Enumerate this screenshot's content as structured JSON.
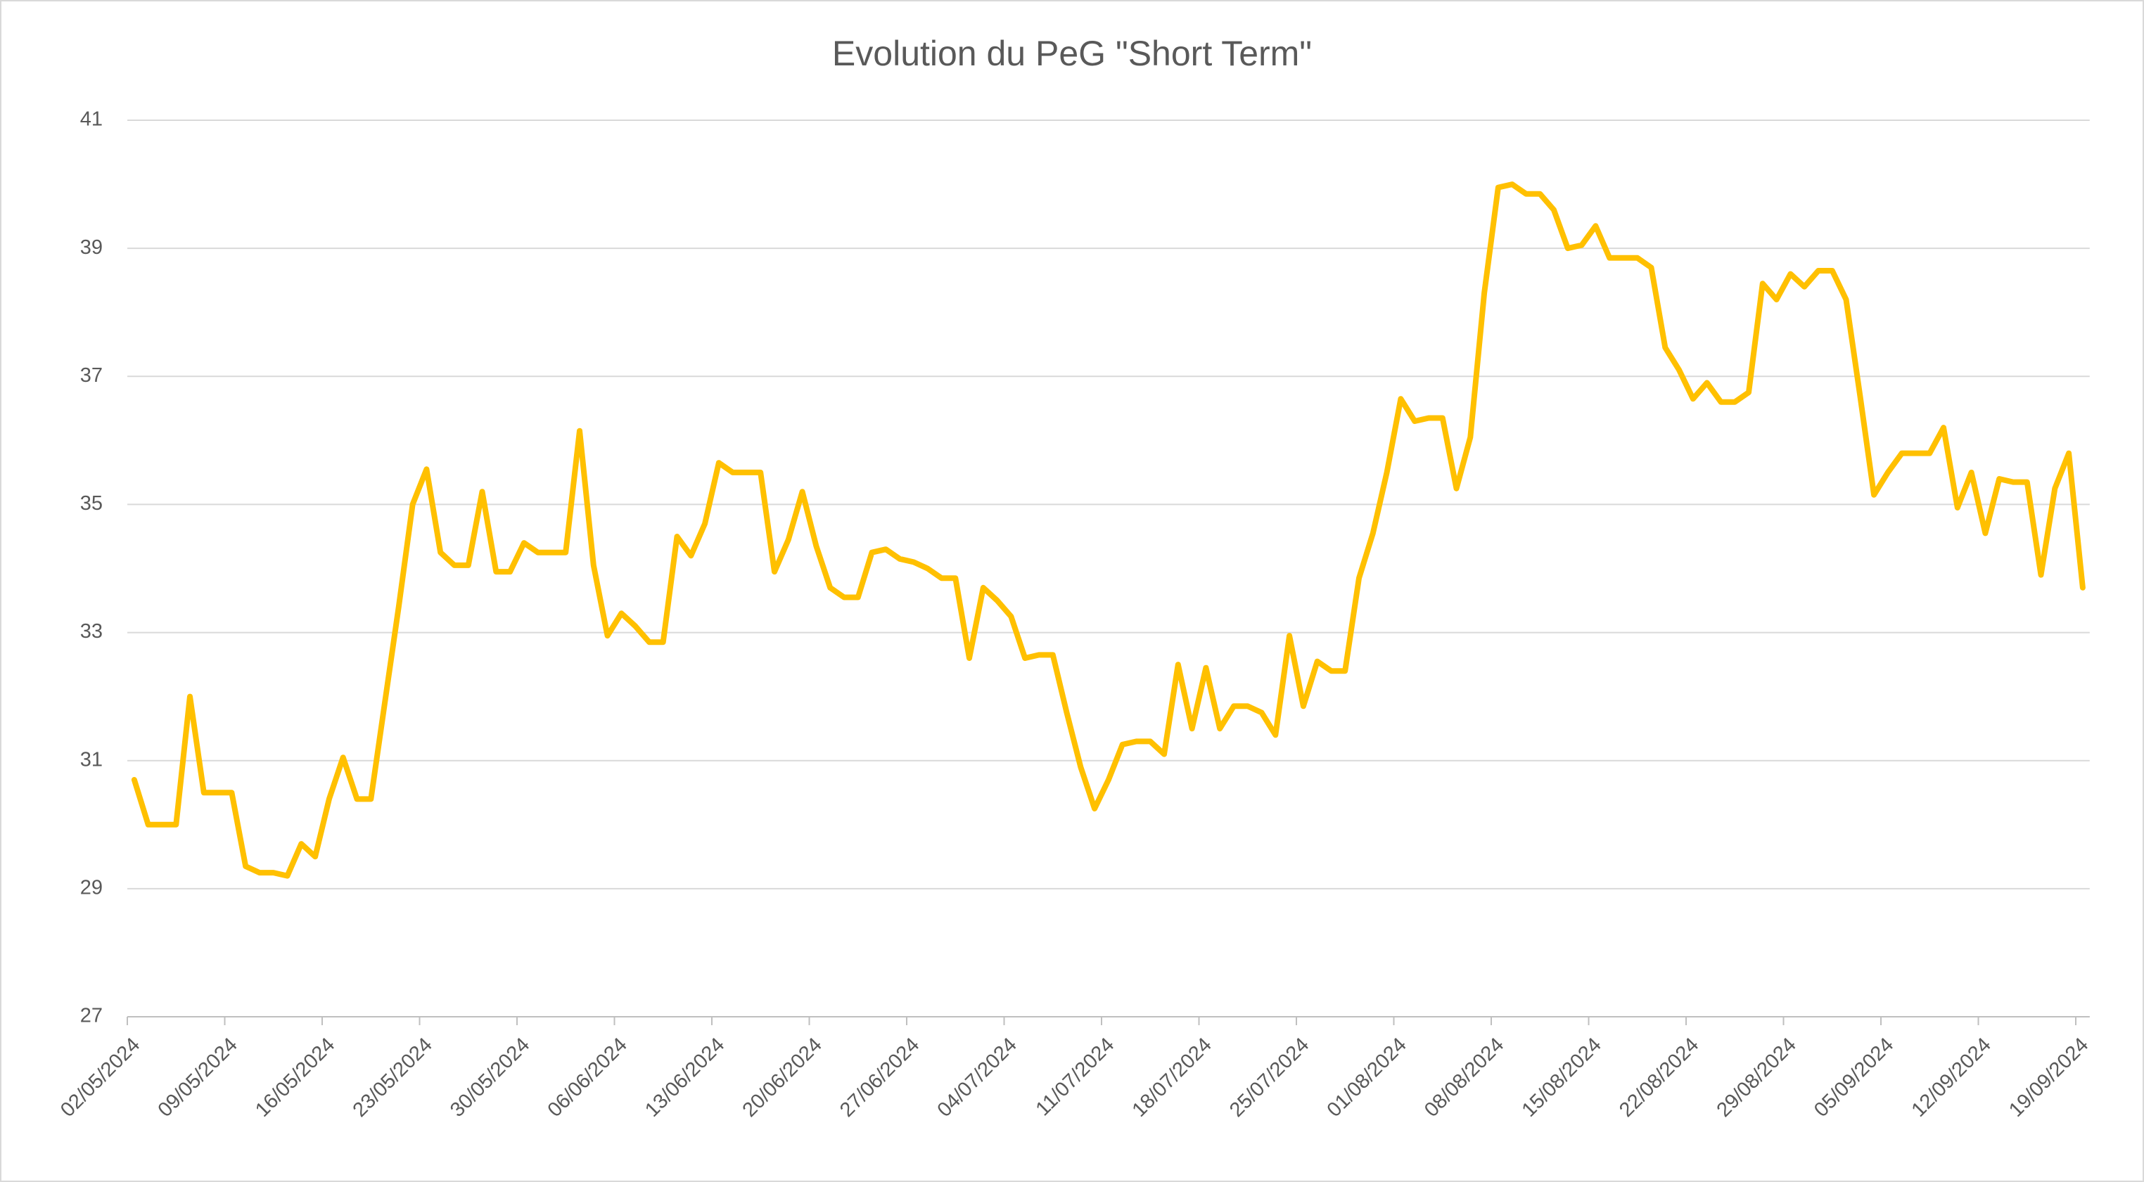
{
  "chart_data": {
    "type": "line",
    "title": "Evolution du PeG \"Short Term\"",
    "color": "#FFC000",
    "grid": true,
    "x": [
      "02/05/2024",
      "03/05/2024",
      "04/05/2024",
      "05/05/2024",
      "06/05/2024",
      "07/05/2024",
      "08/05/2024",
      "09/05/2024",
      "10/05/2024",
      "11/05/2024",
      "12/05/2024",
      "13/05/2024",
      "14/05/2024",
      "15/05/2024",
      "16/05/2024",
      "17/05/2024",
      "18/05/2024",
      "19/05/2024",
      "20/05/2024",
      "21/05/2024",
      "22/05/2024",
      "23/05/2024",
      "24/05/2024",
      "25/05/2024",
      "26/05/2024",
      "27/05/2024",
      "28/05/2024",
      "29/05/2024",
      "30/05/2024",
      "31/05/2024",
      "01/06/2024",
      "02/06/2024",
      "03/06/2024",
      "04/06/2024",
      "05/06/2024",
      "06/06/2024",
      "07/06/2024",
      "08/06/2024",
      "09/06/2024",
      "10/06/2024",
      "11/06/2024",
      "12/06/2024",
      "13/06/2024",
      "14/06/2024",
      "15/06/2024",
      "16/06/2024",
      "17/06/2024",
      "18/06/2024",
      "19/06/2024",
      "20/06/2024",
      "21/06/2024",
      "22/06/2024",
      "23/06/2024",
      "24/06/2024",
      "25/06/2024",
      "26/06/2024",
      "27/06/2024",
      "28/06/2024",
      "29/06/2024",
      "30/06/2024",
      "01/07/2024",
      "02/07/2024",
      "03/07/2024",
      "04/07/2024",
      "05/07/2024",
      "06/07/2024",
      "07/07/2024",
      "08/07/2024",
      "09/07/2024",
      "10/07/2024",
      "11/07/2024",
      "12/07/2024",
      "13/07/2024",
      "14/07/2024",
      "15/07/2024",
      "16/07/2024",
      "17/07/2024",
      "18/07/2024",
      "19/07/2024",
      "20/07/2024",
      "21/07/2024",
      "22/07/2024",
      "23/07/2024",
      "24/07/2024",
      "25/07/2024",
      "26/07/2024",
      "27/07/2024",
      "28/07/2024",
      "29/07/2024",
      "30/07/2024",
      "31/07/2024",
      "01/08/2024",
      "02/08/2024",
      "03/08/2024",
      "04/08/2024",
      "05/08/2024",
      "06/08/2024",
      "07/08/2024",
      "08/08/2024",
      "09/08/2024",
      "10/08/2024",
      "11/08/2024",
      "12/08/2024",
      "13/08/2024",
      "14/08/2024",
      "15/08/2024",
      "16/08/2024",
      "17/08/2024",
      "18/08/2024",
      "19/08/2024",
      "20/08/2024",
      "21/08/2024",
      "22/08/2024",
      "23/08/2024",
      "24/08/2024",
      "25/08/2024",
      "26/08/2024",
      "27/08/2024",
      "28/08/2024",
      "29/08/2024",
      "30/08/2024",
      "31/08/2024",
      "01/09/2024",
      "02/09/2024",
      "03/09/2024",
      "04/09/2024",
      "05/09/2024",
      "06/09/2024",
      "07/09/2024",
      "08/09/2024",
      "09/09/2024",
      "10/09/2024",
      "11/09/2024",
      "12/09/2024",
      "13/09/2024",
      "14/09/2024",
      "15/09/2024",
      "16/09/2024",
      "17/09/2024",
      "18/09/2024",
      "19/09/2024"
    ],
    "values": [
      30.7,
      30.0,
      30.0,
      30.0,
      32.0,
      30.5,
      30.5,
      30.5,
      29.35,
      29.25,
      29.25,
      29.2,
      29.7,
      29.5,
      30.4,
      31.05,
      30.4,
      30.4,
      31.9,
      33.4,
      35.0,
      35.55,
      34.25,
      34.05,
      34.05,
      35.2,
      33.95,
      33.95,
      34.4,
      34.25,
      34.25,
      34.25,
      36.15,
      34.05,
      32.95,
      33.3,
      33.1,
      32.85,
      32.85,
      34.5,
      34.2,
      34.7,
      35.65,
      35.5,
      35.5,
      35.5,
      33.95,
      34.45,
      35.2,
      34.35,
      33.7,
      33.55,
      33.55,
      34.25,
      34.3,
      34.15,
      34.1,
      34.0,
      33.85,
      33.85,
      32.6,
      33.7,
      33.5,
      33.25,
      32.6,
      32.65,
      32.65,
      31.75,
      30.9,
      30.25,
      30.7,
      31.25,
      31.3,
      31.3,
      31.1,
      32.5,
      31.5,
      32.45,
      31.5,
      31.85,
      31.85,
      31.75,
      31.4,
      32.95,
      31.85,
      32.55,
      32.4,
      32.4,
      33.85,
      34.55,
      35.5,
      36.65,
      36.3,
      36.35,
      36.35,
      35.25,
      36.05,
      38.3,
      39.95,
      40.0,
      39.85,
      39.85,
      39.6,
      39.0,
      39.05,
      39.35,
      38.85,
      38.85,
      38.85,
      38.7,
      37.45,
      37.1,
      36.65,
      36.9,
      36.6,
      36.6,
      36.75,
      38.45,
      38.2,
      38.6,
      38.4,
      38.65,
      38.65,
      38.2,
      36.7,
      35.15,
      35.5,
      35.8,
      35.8,
      35.8,
      36.2,
      34.95,
      35.5,
      34.55,
      35.4,
      35.35,
      35.35,
      33.9,
      35.25,
      35.8,
      33.7
    ],
    "xlim": [
      "02/05/2024",
      "19/09/2024"
    ],
    "xticks": [
      "02/05/2024",
      "09/05/2024",
      "16/05/2024",
      "23/05/2024",
      "30/05/2024",
      "06/06/2024",
      "13/06/2024",
      "20/06/2024",
      "27/06/2024",
      "04/07/2024",
      "11/07/2024",
      "18/07/2024",
      "25/07/2024",
      "01/08/2024",
      "08/08/2024",
      "15/08/2024",
      "22/08/2024",
      "29/08/2024",
      "05/09/2024",
      "12/09/2024",
      "19/09/2024"
    ],
    "ylim": [
      27,
      41
    ],
    "yticks": [
      27,
      29,
      31,
      33,
      35,
      37,
      39,
      41
    ]
  }
}
